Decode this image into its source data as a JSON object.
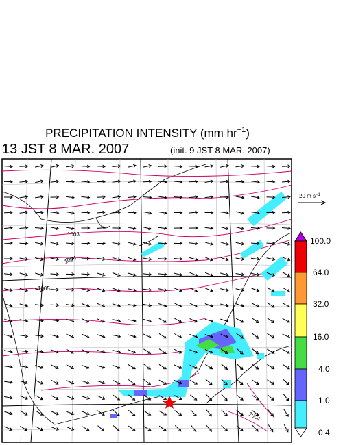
{
  "title": {
    "main": "PRECIPITATION INTENSITY (mm hr",
    "exponent": "−1",
    "close": ")"
  },
  "valid_time": "13 JST 8 MAR. 2007",
  "init_time": "(init. 9 JST 8 MAR. 2007)",
  "wind_scale": {
    "label": "20 m s",
    "exponent": "−1"
  },
  "isobar_labels": [
    "1003",
    "1004",
    "1005",
    "1004"
  ],
  "colorbar": {
    "labels": [
      "100.0",
      "64.0",
      "32.0",
      "16.0",
      "4.0",
      "1.0",
      "0.4"
    ]
  }
}
